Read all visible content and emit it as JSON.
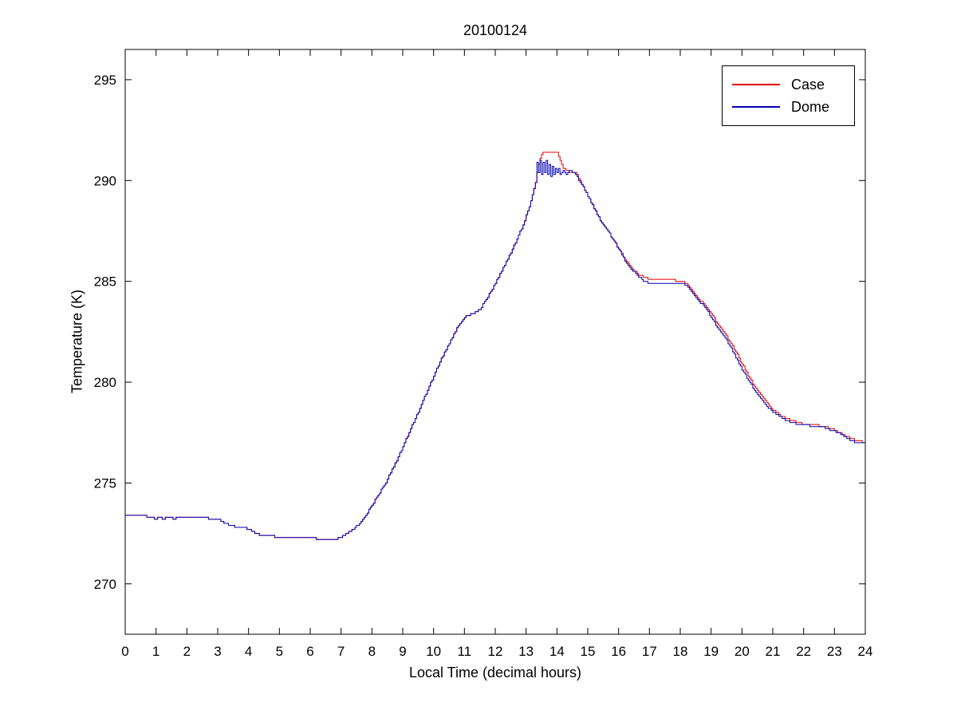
{
  "figure": {
    "title": "20100124",
    "xlabel": "Local Time (decimal hours)",
    "ylabel": "Temperature (K)"
  },
  "chart_data": {
    "type": "line",
    "title": "20100124",
    "xlabel": "Local Time (decimal hours)",
    "ylabel": "Temperature (K)",
    "xlim": [
      0,
      24
    ],
    "ylim": [
      267.5,
      296.5
    ],
    "xticks": [
      0,
      1,
      2,
      3,
      4,
      5,
      6,
      7,
      8,
      9,
      10,
      11,
      12,
      13,
      14,
      15,
      16,
      17,
      18,
      19,
      20,
      21,
      22,
      23,
      24
    ],
    "yticks": [
      270,
      275,
      280,
      285,
      290,
      295
    ],
    "grid": false,
    "legend_position": "top-right",
    "axis_color": "#000000",
    "series": [
      {
        "name": "Case",
        "color": "#e00000",
        "points": [
          [
            0,
            273.4
          ],
          [
            0.5,
            273.4
          ],
          [
            0.8,
            273.3
          ],
          [
            1.0,
            273.2
          ],
          [
            1.1,
            273.3
          ],
          [
            1.2,
            273.2
          ],
          [
            1.4,
            273.3
          ],
          [
            1.6,
            273.2
          ],
          [
            1.7,
            273.3
          ],
          [
            2.0,
            273.3
          ],
          [
            2.5,
            273.3
          ],
          [
            2.8,
            273.2
          ],
          [
            3.0,
            273.2
          ],
          [
            3.2,
            273.0
          ],
          [
            3.4,
            272.9
          ],
          [
            3.6,
            272.8
          ],
          [
            3.8,
            272.8
          ],
          [
            4.0,
            272.7
          ],
          [
            4.2,
            272.5
          ],
          [
            4.4,
            272.4
          ],
          [
            4.6,
            272.4
          ],
          [
            5.0,
            272.3
          ],
          [
            5.5,
            272.3
          ],
          [
            6.0,
            272.3
          ],
          [
            6.3,
            272.2
          ],
          [
            6.5,
            272.2
          ],
          [
            6.8,
            272.2
          ],
          [
            7.0,
            272.3
          ],
          [
            7.2,
            272.5
          ],
          [
            7.4,
            272.7
          ],
          [
            7.6,
            273.0
          ],
          [
            7.8,
            273.4
          ],
          [
            8.0,
            273.9
          ],
          [
            8.2,
            274.4
          ],
          [
            8.4,
            274.9
          ],
          [
            8.6,
            275.5
          ],
          [
            8.8,
            276.1
          ],
          [
            9.0,
            276.8
          ],
          [
            9.2,
            277.5
          ],
          [
            9.4,
            278.2
          ],
          [
            9.6,
            278.9
          ],
          [
            9.8,
            279.6
          ],
          [
            10.0,
            280.3
          ],
          [
            10.2,
            281.0
          ],
          [
            10.4,
            281.6
          ],
          [
            10.6,
            282.2
          ],
          [
            10.8,
            282.8
          ],
          [
            11.0,
            283.2
          ],
          [
            11.1,
            283.3
          ],
          [
            11.3,
            283.4
          ],
          [
            11.5,
            283.6
          ],
          [
            11.7,
            284.1
          ],
          [
            11.9,
            284.6
          ],
          [
            12.1,
            285.2
          ],
          [
            12.3,
            285.8
          ],
          [
            12.5,
            286.4
          ],
          [
            12.7,
            287.1
          ],
          [
            12.9,
            287.8
          ],
          [
            13.1,
            288.7
          ],
          [
            13.3,
            289.9
          ],
          [
            13.4,
            290.8
          ],
          [
            13.5,
            291.3
          ],
          [
            13.6,
            291.4
          ],
          [
            14.0,
            291.4
          ],
          [
            14.1,
            291.0
          ],
          [
            14.2,
            290.6
          ],
          [
            14.4,
            290.4
          ],
          [
            14.6,
            290.4
          ],
          [
            14.7,
            290.1
          ],
          [
            14.8,
            289.8
          ],
          [
            15.0,
            289.2
          ],
          [
            15.2,
            288.6
          ],
          [
            15.4,
            288.0
          ],
          [
            15.6,
            287.6
          ],
          [
            15.8,
            287.1
          ],
          [
            16.0,
            286.6
          ],
          [
            16.2,
            286.1
          ],
          [
            16.4,
            285.7
          ],
          [
            16.6,
            285.4
          ],
          [
            16.8,
            285.2
          ],
          [
            17.0,
            285.1
          ],
          [
            17.3,
            285.1
          ],
          [
            17.6,
            285.1
          ],
          [
            18.0,
            285.0
          ],
          [
            18.2,
            284.9
          ],
          [
            18.4,
            284.5
          ],
          [
            18.6,
            284.1
          ],
          [
            18.8,
            283.8
          ],
          [
            19.0,
            283.4
          ],
          [
            19.2,
            282.9
          ],
          [
            19.4,
            282.5
          ],
          [
            19.6,
            282.0
          ],
          [
            19.8,
            281.5
          ],
          [
            20.0,
            280.9
          ],
          [
            20.2,
            280.3
          ],
          [
            20.4,
            279.8
          ],
          [
            20.6,
            279.4
          ],
          [
            20.8,
            279.0
          ],
          [
            21.0,
            278.6
          ],
          [
            21.2,
            278.4
          ],
          [
            21.4,
            278.2
          ],
          [
            21.6,
            278.1
          ],
          [
            21.8,
            278.0
          ],
          [
            22.0,
            277.9
          ],
          [
            22.3,
            277.9
          ],
          [
            22.6,
            277.8
          ],
          [
            22.9,
            277.7
          ],
          [
            23.1,
            277.5
          ],
          [
            23.3,
            277.4
          ],
          [
            23.5,
            277.2
          ],
          [
            23.7,
            277.1
          ],
          [
            24.0,
            277.0
          ]
        ]
      },
      {
        "name": "Dome",
        "color": "#0000b0",
        "points": [
          [
            0,
            273.4
          ],
          [
            0.5,
            273.4
          ],
          [
            0.8,
            273.3
          ],
          [
            1.0,
            273.2
          ],
          [
            1.1,
            273.3
          ],
          [
            1.2,
            273.2
          ],
          [
            1.4,
            273.3
          ],
          [
            1.6,
            273.2
          ],
          [
            1.7,
            273.3
          ],
          [
            2.0,
            273.3
          ],
          [
            2.5,
            273.3
          ],
          [
            2.8,
            273.2
          ],
          [
            3.0,
            273.2
          ],
          [
            3.2,
            273.0
          ],
          [
            3.4,
            272.9
          ],
          [
            3.6,
            272.8
          ],
          [
            3.8,
            272.8
          ],
          [
            4.0,
            272.7
          ],
          [
            4.2,
            272.5
          ],
          [
            4.4,
            272.4
          ],
          [
            4.6,
            272.4
          ],
          [
            5.0,
            272.3
          ],
          [
            5.5,
            272.3
          ],
          [
            6.0,
            272.3
          ],
          [
            6.3,
            272.2
          ],
          [
            6.5,
            272.2
          ],
          [
            6.8,
            272.2
          ],
          [
            7.0,
            272.3
          ],
          [
            7.2,
            272.5
          ],
          [
            7.4,
            272.7
          ],
          [
            7.6,
            273.0
          ],
          [
            7.8,
            273.4
          ],
          [
            8.0,
            273.9
          ],
          [
            8.2,
            274.4
          ],
          [
            8.4,
            274.9
          ],
          [
            8.6,
            275.5
          ],
          [
            8.8,
            276.1
          ],
          [
            9.0,
            276.8
          ],
          [
            9.2,
            277.5
          ],
          [
            9.4,
            278.2
          ],
          [
            9.6,
            278.9
          ],
          [
            9.8,
            279.6
          ],
          [
            10.0,
            280.3
          ],
          [
            10.2,
            281.0
          ],
          [
            10.4,
            281.6
          ],
          [
            10.6,
            282.2
          ],
          [
            10.8,
            282.8
          ],
          [
            11.0,
            283.2
          ],
          [
            11.1,
            283.3
          ],
          [
            11.3,
            283.4
          ],
          [
            11.5,
            283.6
          ],
          [
            11.7,
            284.1
          ],
          [
            11.9,
            284.6
          ],
          [
            12.1,
            285.2
          ],
          [
            12.3,
            285.8
          ],
          [
            12.5,
            286.4
          ],
          [
            12.7,
            287.1
          ],
          [
            12.9,
            287.8
          ],
          [
            13.1,
            288.7
          ],
          [
            13.3,
            289.9
          ],
          [
            13.35,
            290.9
          ],
          [
            13.4,
            290.4
          ],
          [
            13.45,
            291.0
          ],
          [
            13.5,
            290.3
          ],
          [
            13.55,
            290.9
          ],
          [
            13.6,
            290.4
          ],
          [
            13.65,
            291.0
          ],
          [
            13.7,
            290.3
          ],
          [
            13.75,
            290.8
          ],
          [
            13.8,
            290.2
          ],
          [
            13.85,
            290.7
          ],
          [
            13.9,
            290.3
          ],
          [
            13.95,
            290.6
          ],
          [
            14.0,
            290.4
          ],
          [
            14.05,
            290.6
          ],
          [
            14.1,
            290.3
          ],
          [
            14.2,
            290.5
          ],
          [
            14.3,
            290.3
          ],
          [
            14.4,
            290.5
          ],
          [
            14.5,
            290.4
          ],
          [
            14.6,
            290.3
          ],
          [
            14.7,
            290.0
          ],
          [
            14.8,
            289.8
          ],
          [
            15.0,
            289.2
          ],
          [
            15.2,
            288.6
          ],
          [
            15.4,
            288.0
          ],
          [
            15.6,
            287.6
          ],
          [
            15.8,
            287.1
          ],
          [
            16.0,
            286.6
          ],
          [
            16.2,
            286.0
          ],
          [
            16.4,
            285.6
          ],
          [
            16.6,
            285.3
          ],
          [
            16.8,
            285.0
          ],
          [
            17.0,
            284.9
          ],
          [
            17.3,
            284.9
          ],
          [
            17.6,
            284.9
          ],
          [
            18.0,
            284.9
          ],
          [
            18.2,
            284.8
          ],
          [
            18.4,
            284.4
          ],
          [
            18.6,
            284.0
          ],
          [
            18.8,
            283.7
          ],
          [
            19.0,
            283.2
          ],
          [
            19.2,
            282.7
          ],
          [
            19.4,
            282.3
          ],
          [
            19.6,
            281.8
          ],
          [
            19.8,
            281.2
          ],
          [
            20.0,
            280.6
          ],
          [
            20.2,
            280.1
          ],
          [
            20.4,
            279.6
          ],
          [
            20.6,
            279.2
          ],
          [
            20.8,
            278.8
          ],
          [
            21.0,
            278.5
          ],
          [
            21.2,
            278.3
          ],
          [
            21.4,
            278.1
          ],
          [
            21.6,
            278.0
          ],
          [
            21.8,
            277.9
          ],
          [
            22.0,
            277.9
          ],
          [
            22.3,
            277.8
          ],
          [
            22.6,
            277.8
          ],
          [
            22.9,
            277.6
          ],
          [
            23.1,
            277.5
          ],
          [
            23.3,
            277.3
          ],
          [
            23.5,
            277.1
          ],
          [
            23.7,
            277.0
          ],
          [
            24.0,
            277.0
          ]
        ]
      }
    ]
  }
}
